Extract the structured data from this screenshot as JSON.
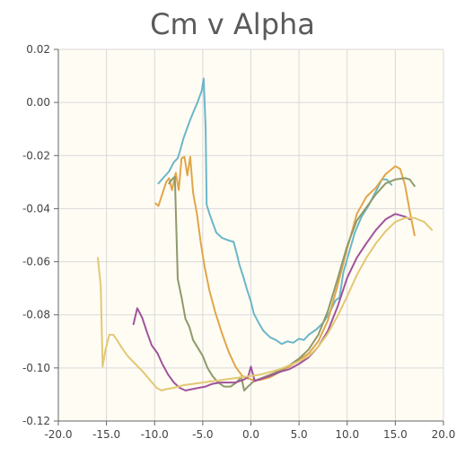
{
  "chart_data": {
    "type": "line",
    "title": "Cm v Alpha",
    "xlabel": "",
    "ylabel": "",
    "xlim": [
      -20.0,
      20.0
    ],
    "ylim": [
      -0.12,
      0.02
    ],
    "x_ticks": [
      "-20.0",
      "-15.0",
      "-10.0",
      "-5.0",
      "0.0",
      "5.0",
      "10.0",
      "15.0",
      "20.0"
    ],
    "y_ticks": [
      "0.02",
      "0.00",
      "-0.02",
      "-0.04",
      "-0.06",
      "-0.08",
      "-0.10",
      "-0.12"
    ],
    "x_tick_values": [
      -20,
      -15,
      -10,
      -5,
      0,
      5,
      10,
      15,
      20
    ],
    "y_tick_values": [
      0.02,
      0.0,
      -0.02,
      -0.04,
      -0.06,
      -0.08,
      -0.1,
      -0.12
    ],
    "grid": true,
    "legend": "none",
    "plot_background": "#fffcf4",
    "series": [
      {
        "color": "#6bb6c9",
        "points": [
          [
            -9.6,
            -0.0305
          ],
          [
            -9.0,
            -0.028
          ],
          [
            -8.5,
            -0.026
          ],
          [
            -8.0,
            -0.0225
          ],
          [
            -7.6,
            -0.021
          ],
          [
            -7.3,
            -0.0175
          ],
          [
            -7.0,
            -0.0135
          ],
          [
            -6.7,
            -0.0105
          ],
          [
            -6.3,
            -0.0065
          ],
          [
            -5.9,
            -0.003
          ],
          [
            -5.5,
            0.0005
          ],
          [
            -5.1,
            0.0045
          ],
          [
            -4.9,
            0.009
          ],
          [
            -4.7,
            -0.01
          ],
          [
            -4.6,
            -0.0385
          ],
          [
            -4.3,
            -0.042
          ],
          [
            -4.0,
            -0.045
          ],
          [
            -3.6,
            -0.049
          ],
          [
            -3.0,
            -0.051
          ],
          [
            -2.3,
            -0.052
          ],
          [
            -1.8,
            -0.0525
          ],
          [
            -1.5,
            -0.0565
          ],
          [
            -1.2,
            -0.061
          ],
          [
            -0.8,
            -0.0655
          ],
          [
            -0.4,
            -0.0705
          ],
          [
            0.0,
            -0.075
          ],
          [
            0.3,
            -0.0795
          ],
          [
            0.8,
            -0.083
          ],
          [
            1.3,
            -0.086
          ],
          [
            2.0,
            -0.0885
          ],
          [
            2.6,
            -0.0895
          ],
          [
            3.2,
            -0.091
          ],
          [
            3.8,
            -0.09
          ],
          [
            4.4,
            -0.0905
          ],
          [
            5.0,
            -0.089
          ],
          [
            5.5,
            -0.0895
          ],
          [
            6.0,
            -0.0875
          ],
          [
            6.8,
            -0.0855
          ],
          [
            7.5,
            -0.083
          ],
          [
            8.2,
            -0.079
          ],
          [
            8.8,
            -0.0745
          ],
          [
            9.2,
            -0.0735
          ],
          [
            9.6,
            -0.064
          ],
          [
            10.2,
            -0.0565
          ],
          [
            10.8,
            -0.049
          ],
          [
            11.5,
            -0.043
          ],
          [
            12.2,
            -0.039
          ],
          [
            12.9,
            -0.034
          ],
          [
            13.6,
            -0.029
          ],
          [
            14.1,
            -0.029
          ],
          [
            14.6,
            -0.031
          ]
        ]
      },
      {
        "color": "#e0a64a",
        "points": [
          [
            -9.9,
            -0.038
          ],
          [
            -9.6,
            -0.039
          ],
          [
            -9.2,
            -0.0345
          ],
          [
            -8.8,
            -0.03
          ],
          [
            -8.5,
            -0.0285
          ],
          [
            -8.2,
            -0.033
          ],
          [
            -7.8,
            -0.0265
          ],
          [
            -7.5,
            -0.033
          ],
          [
            -7.2,
            -0.021
          ],
          [
            -6.9,
            -0.0205
          ],
          [
            -6.6,
            -0.0275
          ],
          [
            -6.3,
            -0.0205
          ],
          [
            -6.0,
            -0.034
          ],
          [
            -5.6,
            -0.042
          ],
          [
            -5.2,
            -0.053
          ],
          [
            -4.8,
            -0.062
          ],
          [
            -4.3,
            -0.071
          ],
          [
            -3.7,
            -0.079
          ],
          [
            -3.0,
            -0.087
          ],
          [
            -2.3,
            -0.094
          ],
          [
            -1.6,
            -0.0995
          ],
          [
            -0.9,
            -0.103
          ],
          [
            -0.3,
            -0.104
          ],
          [
            0.2,
            -0.1045
          ],
          [
            1.0,
            -0.1045
          ],
          [
            2.0,
            -0.1035
          ],
          [
            3.0,
            -0.1015
          ],
          [
            4.0,
            -0.0995
          ],
          [
            5.0,
            -0.097
          ],
          [
            6.0,
            -0.0945
          ],
          [
            7.0,
            -0.09
          ],
          [
            8.0,
            -0.082
          ],
          [
            9.0,
            -0.069
          ],
          [
            10.0,
            -0.055
          ],
          [
            11.0,
            -0.042
          ],
          [
            12.0,
            -0.0355
          ],
          [
            13.0,
            -0.032
          ],
          [
            14.0,
            -0.027
          ],
          [
            15.0,
            -0.024
          ],
          [
            15.5,
            -0.025
          ],
          [
            16.0,
            -0.031
          ],
          [
            16.5,
            -0.041
          ],
          [
            17.0,
            -0.05
          ]
        ]
      },
      {
        "color": "#8f9a6a",
        "points": [
          [
            -8.5,
            -0.0305
          ],
          [
            -8.2,
            -0.029
          ],
          [
            -7.9,
            -0.028
          ],
          [
            -7.6,
            -0.0665
          ],
          [
            -7.2,
            -0.0735
          ],
          [
            -6.8,
            -0.0815
          ],
          [
            -6.4,
            -0.0845
          ],
          [
            -6.0,
            -0.0895
          ],
          [
            -5.5,
            -0.0925
          ],
          [
            -5.0,
            -0.0955
          ],
          [
            -4.5,
            -0.1
          ],
          [
            -4.0,
            -0.103
          ],
          [
            -3.4,
            -0.1055
          ],
          [
            -2.8,
            -0.107
          ],
          [
            -2.1,
            -0.107
          ],
          [
            -1.5,
            -0.1055
          ],
          [
            -1.0,
            -0.1035
          ],
          [
            -0.7,
            -0.1085
          ],
          [
            -0.3,
            -0.107
          ],
          [
            0.3,
            -0.105
          ],
          [
            1.0,
            -0.104
          ],
          [
            2.0,
            -0.1025
          ],
          [
            3.0,
            -0.101
          ],
          [
            4.0,
            -0.099
          ],
          [
            5.0,
            -0.0965
          ],
          [
            6.0,
            -0.093
          ],
          [
            7.0,
            -0.0875
          ],
          [
            8.0,
            -0.0785
          ],
          [
            9.0,
            -0.0665
          ],
          [
            10.0,
            -0.054
          ],
          [
            11.0,
            -0.0445
          ],
          [
            12.0,
            -0.0395
          ],
          [
            13.0,
            -0.0345
          ],
          [
            14.0,
            -0.0305
          ],
          [
            15.0,
            -0.029
          ],
          [
            16.0,
            -0.0285
          ],
          [
            16.5,
            -0.029
          ],
          [
            17.0,
            -0.0315
          ]
        ]
      },
      {
        "color": "#a0539a",
        "points": [
          [
            -12.2,
            -0.0835
          ],
          [
            -11.8,
            -0.0775
          ],
          [
            -11.3,
            -0.081
          ],
          [
            -10.8,
            -0.0865
          ],
          [
            -10.3,
            -0.0915
          ],
          [
            -9.7,
            -0.0945
          ],
          [
            -9.2,
            -0.0985
          ],
          [
            -8.6,
            -0.1025
          ],
          [
            -8.0,
            -0.1055
          ],
          [
            -7.4,
            -0.1075
          ],
          [
            -6.8,
            -0.1085
          ],
          [
            -6.1,
            -0.108
          ],
          [
            -5.4,
            -0.1075
          ],
          [
            -4.7,
            -0.107
          ],
          [
            -4.0,
            -0.106
          ],
          [
            -3.2,
            -0.1055
          ],
          [
            -2.4,
            -0.1055
          ],
          [
            -1.6,
            -0.1055
          ],
          [
            -0.8,
            -0.1045
          ],
          [
            -0.3,
            -0.1035
          ],
          [
            0.0,
            -0.0995
          ],
          [
            0.4,
            -0.105
          ],
          [
            1.2,
            -0.104
          ],
          [
            2.0,
            -0.103
          ],
          [
            3.0,
            -0.1015
          ],
          [
            4.0,
            -0.1005
          ],
          [
            5.0,
            -0.0985
          ],
          [
            6.0,
            -0.096
          ],
          [
            7.0,
            -0.092
          ],
          [
            8.0,
            -0.086
          ],
          [
            9.0,
            -0.077
          ],
          [
            10.0,
            -0.066
          ],
          [
            11.0,
            -0.0585
          ],
          [
            12.0,
            -0.053
          ],
          [
            13.0,
            -0.048
          ],
          [
            14.0,
            -0.044
          ],
          [
            15.0,
            -0.042
          ],
          [
            16.0,
            -0.043
          ],
          [
            16.5,
            -0.044
          ]
        ]
      },
      {
        "color": "#e2c874",
        "points": [
          [
            -15.9,
            -0.0585
          ],
          [
            -15.6,
            -0.069
          ],
          [
            -15.4,
            -0.0995
          ],
          [
            -15.1,
            -0.093
          ],
          [
            -14.7,
            -0.0875
          ],
          [
            -14.3,
            -0.0875
          ],
          [
            -13.9,
            -0.0895
          ],
          [
            -13.4,
            -0.0925
          ],
          [
            -12.8,
            -0.0955
          ],
          [
            -12.0,
            -0.0985
          ],
          [
            -11.2,
            -0.1015
          ],
          [
            -10.5,
            -0.1045
          ],
          [
            -9.8,
            -0.1075
          ],
          [
            -9.3,
            -0.1085
          ],
          [
            -8.8,
            -0.108
          ],
          [
            -8.0,
            -0.1075
          ],
          [
            -7.0,
            -0.1065
          ],
          [
            -6.0,
            -0.106
          ],
          [
            -5.0,
            -0.1055
          ],
          [
            -4.0,
            -0.105
          ],
          [
            -3.0,
            -0.1045
          ],
          [
            -2.0,
            -0.104
          ],
          [
            -1.0,
            -0.1035
          ],
          [
            0.0,
            -0.103
          ],
          [
            1.0,
            -0.1025
          ],
          [
            2.0,
            -0.1015
          ],
          [
            3.0,
            -0.1005
          ],
          [
            4.0,
            -0.099
          ],
          [
            5.0,
            -0.0975
          ],
          [
            6.0,
            -0.0955
          ],
          [
            7.0,
            -0.092
          ],
          [
            8.0,
            -0.087
          ],
          [
            9.0,
            -0.0805
          ],
          [
            10.0,
            -0.073
          ],
          [
            11.0,
            -0.065
          ],
          [
            12.0,
            -0.0585
          ],
          [
            13.0,
            -0.053
          ],
          [
            14.0,
            -0.0485
          ],
          [
            15.0,
            -0.045
          ],
          [
            16.0,
            -0.0435
          ],
          [
            17.0,
            -0.0435
          ],
          [
            18.0,
            -0.045
          ],
          [
            18.8,
            -0.048
          ]
        ]
      }
    ]
  }
}
